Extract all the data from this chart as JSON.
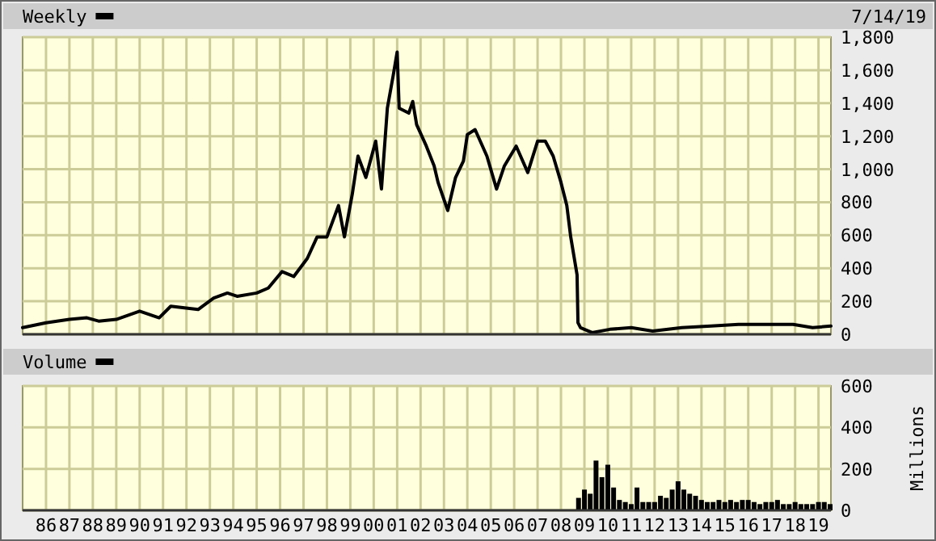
{
  "chart_data": [
    {
      "type": "line",
      "legend": "top left",
      "grid": true,
      "tick_labels": "y",
      "annotations": [
        "7/14/19"
      ],
      "xlim": [
        "1985-01",
        "2019-07-14"
      ],
      "xticks": [
        {
          "value": "1986",
          "label": null
        },
        {
          "value": "1987",
          "label": null
        },
        {
          "value": "1988",
          "label": null
        },
        {
          "value": "1989",
          "label": null
        },
        {
          "value": "1990",
          "label": null
        },
        {
          "value": "1991",
          "label": null
        },
        {
          "value": "1992",
          "label": null
        },
        {
          "value": "1993",
          "label": null
        },
        {
          "value": "1994",
          "label": null
        },
        {
          "value": "1995",
          "label": null
        },
        {
          "value": "1996",
          "label": null
        },
        {
          "value": "1997",
          "label": null
        },
        {
          "value": "1998",
          "label": null
        },
        {
          "value": "1999",
          "label": null
        },
        {
          "value": "2000",
          "label": null
        },
        {
          "value": "2001",
          "label": null
        },
        {
          "value": "2002",
          "label": null
        },
        {
          "value": "2003",
          "label": null
        },
        {
          "value": "2004",
          "label": null
        },
        {
          "value": "2005",
          "label": null
        },
        {
          "value": "2006",
          "label": null
        },
        {
          "value": "2007",
          "label": null
        },
        {
          "value": "2008",
          "label": null
        },
        {
          "value": "2009",
          "label": null
        },
        {
          "value": "2010",
          "label": null
        },
        {
          "value": "2011",
          "label": null
        },
        {
          "value": "2012",
          "label": null
        },
        {
          "value": "2013",
          "label": null
        },
        {
          "value": "2014",
          "label": null
        },
        {
          "value": "2015",
          "label": null
        },
        {
          "value": "2016",
          "label": null
        },
        {
          "value": "2017",
          "label": null
        },
        {
          "value": "2018",
          "label": null
        },
        {
          "value": "2019",
          "label": null
        }
      ],
      "ylim": [
        0,
        1800
      ],
      "yticks": [
        0,
        200,
        400,
        600,
        800,
        {
          "value": 1000,
          "label": "1,000"
        },
        {
          "value": 1200,
          "label": "1,200"
        },
        {
          "value": 1400,
          "label": "1,400"
        },
        {
          "value": 1600,
          "label": "1,600"
        },
        {
          "value": 1800,
          "label": "1,800"
        }
      ],
      "series": [
        {
          "name": "Weekly",
          "color": "#000000",
          "x": [
            "1985-01",
            "1986-01",
            "1987-01",
            "1987-10",
            "1988-04",
            "1989-01",
            "1990-01",
            "1990-11",
            "1991-05",
            "1992-07",
            "1993-03",
            "1993-10",
            "1994-03",
            "1995-01",
            "1995-07",
            "1996-02",
            "1996-08",
            "1997-03",
            "1997-08",
            "1998-01",
            "1998-07",
            "1998-10",
            "1999-02",
            "1999-05",
            "1999-09",
            "2000-02",
            "2000-05",
            "2000-08",
            "2000-11",
            "2001-01",
            "2001-02",
            "2001-07",
            "2001-09",
            "2001-11",
            "2002-04",
            "2002-08",
            "2002-10",
            "2003-03",
            "2003-07",
            "2003-11",
            "2004-01",
            "2004-05",
            "2004-11",
            "2005-04",
            "2005-08",
            "2006-02",
            "2006-08",
            "2007-01",
            "2007-05",
            "2007-09",
            "2008-01",
            "2008-04",
            "2008-06",
            "2008-09-08",
            "2008-09-22",
            "2008-11",
            "2009-05",
            "2010-02",
            "2011-01",
            "2011-12",
            "2013-03",
            "2014-06",
            "2015-08",
            "2017-01",
            "2017-12",
            "2018-10",
            "2019-07-14"
          ],
          "values": [
            40,
            70,
            90,
            100,
            80,
            90,
            140,
            100,
            170,
            150,
            220,
            250,
            230,
            250,
            280,
            380,
            350,
            460,
            590,
            590,
            780,
            590,
            850,
            1080,
            950,
            1170,
            880,
            1370,
            1570,
            1710,
            1370,
            1340,
            1410,
            1270,
            1140,
            1020,
            920,
            750,
            950,
            1050,
            1210,
            1240,
            1080,
            880,
            1020,
            1140,
            980,
            1170,
            1170,
            1080,
            920,
            780,
            590,
            360,
            70,
            40,
            10,
            30,
            40,
            20,
            40,
            50,
            60,
            60,
            60,
            40,
            50
          ]
        }
      ]
    },
    {
      "type": "bar",
      "legend": "top left",
      "grid": true,
      "ylabel": "Millions",
      "xlim": [
        "1985-01",
        "2019-07-14"
      ],
      "xticks": [
        {
          "value": "1986",
          "label": "86"
        },
        {
          "value": "1987",
          "label": "87"
        },
        {
          "value": "1988",
          "label": "88"
        },
        {
          "value": "1989",
          "label": "89"
        },
        {
          "value": "1990",
          "label": "90"
        },
        {
          "value": "1991",
          "label": "91"
        },
        {
          "value": "1992",
          "label": "92"
        },
        {
          "value": "1993",
          "label": "93"
        },
        {
          "value": "1994",
          "label": "94"
        },
        {
          "value": "1995",
          "label": "95"
        },
        {
          "value": "1996",
          "label": "96"
        },
        {
          "value": "1997",
          "label": "97"
        },
        {
          "value": "1998",
          "label": "98"
        },
        {
          "value": "1999",
          "label": "99"
        },
        {
          "value": "2000",
          "label": "00"
        },
        {
          "value": "2001",
          "label": "01"
        },
        {
          "value": "2002",
          "label": "02"
        },
        {
          "value": "2003",
          "label": "03"
        },
        {
          "value": "2004",
          "label": "04"
        },
        {
          "value": "2005",
          "label": "05"
        },
        {
          "value": "2006",
          "label": "06"
        },
        {
          "value": "2007",
          "label": "07"
        },
        {
          "value": "2008",
          "label": "08"
        },
        {
          "value": "2009",
          "label": "09"
        },
        {
          "value": "2010",
          "label": "10"
        },
        {
          "value": "2011",
          "label": "11"
        },
        {
          "value": "2012",
          "label": "12"
        },
        {
          "value": "2013",
          "label": "13"
        },
        {
          "value": "2014",
          "label": "14"
        },
        {
          "value": "2015",
          "label": "15"
        },
        {
          "value": "2016",
          "label": "16"
        },
        {
          "value": "2017",
          "label": "17"
        },
        {
          "value": "2018",
          "label": "18"
        },
        {
          "value": "2019",
          "label": "19"
        }
      ],
      "ylim": [
        0,
        600
      ],
      "yticks": [
        0,
        200,
        400,
        600
      ],
      "series": [
        {
          "name": "Volume",
          "color": "#000000",
          "x": [
            "2008-10",
            "2009-01",
            "2009-04",
            "2009-07",
            "2009-10",
            "2010-01",
            "2010-04",
            "2010-07",
            "2010-10",
            "2011-01",
            "2011-04",
            "2011-07",
            "2011-10",
            "2012-01",
            "2012-04",
            "2012-07",
            "2012-10",
            "2013-01",
            "2013-04",
            "2013-07",
            "2013-10",
            "2014-01",
            "2014-04",
            "2014-07",
            "2014-10",
            "2015-01",
            "2015-04",
            "2015-07",
            "2015-10",
            "2016-01",
            "2016-04",
            "2016-07",
            "2016-10",
            "2017-01",
            "2017-04",
            "2017-07",
            "2017-10",
            "2018-01",
            "2018-04",
            "2018-07",
            "2018-10",
            "2019-01",
            "2019-04",
            "2019-07"
          ],
          "values": [
            60,
            100,
            80,
            240,
            160,
            220,
            110,
            50,
            40,
            30,
            110,
            40,
            40,
            40,
            70,
            60,
            100,
            140,
            100,
            80,
            70,
            50,
            40,
            40,
            50,
            40,
            50,
            40,
            50,
            50,
            40,
            30,
            40,
            40,
            50,
            30,
            30,
            40,
            30,
            30,
            30,
            40,
            40,
            30
          ]
        }
      ]
    }
  ]
}
